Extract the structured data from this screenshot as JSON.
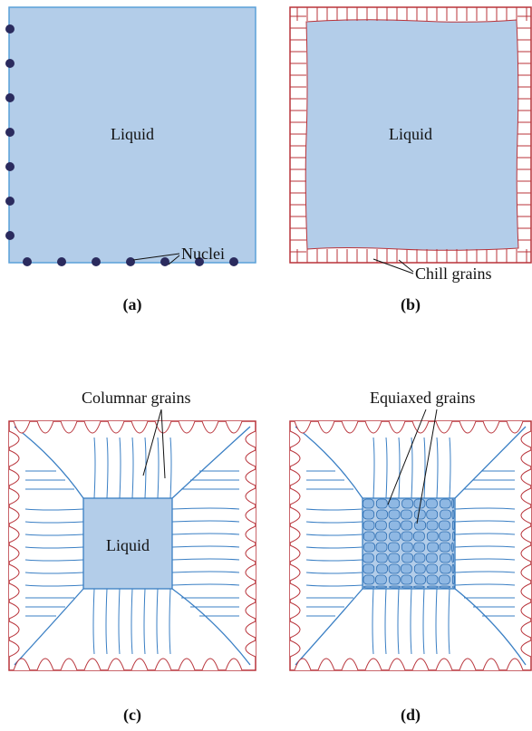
{
  "panels": [
    {
      "label": "(a)",
      "liquid": "Liquid",
      "callout": "Nuclei"
    },
    {
      "label": "(b)",
      "liquid": "Liquid",
      "callout": "Chill grains"
    },
    {
      "label": "(c)",
      "liquid": "Liquid",
      "callout": "Columnar grains"
    },
    {
      "label": "(d)",
      "callout": "Equiaxed grains"
    }
  ]
}
